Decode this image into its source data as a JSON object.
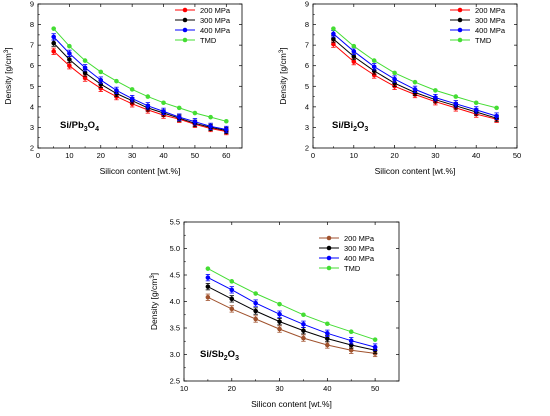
{
  "chart_data": [
    {
      "type": "line",
      "annotation": "Si/Pb3O4",
      "annotation_parts": [
        "Si/Pb",
        "3",
        "O",
        "4"
      ],
      "xlabel": "Silicon content [wt.%]",
      "ylabel": "Density [g/cm3]",
      "ylabel_parts": [
        "Density [g/cm",
        "3",
        "]"
      ],
      "xlim": [
        0,
        65
      ],
      "ylim": [
        2,
        9
      ],
      "xticks": [
        0,
        10,
        20,
        30,
        40,
        50,
        60
      ],
      "yticks": [
        2,
        3,
        4,
        5,
        6,
        7,
        8,
        9
      ],
      "legend_position": "top-right",
      "x": [
        5,
        10,
        15,
        20,
        25,
        30,
        35,
        40,
        45,
        50,
        55,
        60
      ],
      "series": [
        {
          "name": "200 MPa",
          "color": "#ff0000",
          "values": [
            6.7,
            6.0,
            5.4,
            4.9,
            4.5,
            4.15,
            3.85,
            3.6,
            3.4,
            3.15,
            2.95,
            2.8
          ]
        },
        {
          "name": "300 MPa",
          "color": "#000000",
          "values": [
            7.1,
            6.3,
            5.65,
            5.1,
            4.65,
            4.3,
            3.95,
            3.7,
            3.45,
            3.2,
            3.0,
            2.85
          ]
        },
        {
          "name": "400 MPa",
          "color": "#0000ff",
          "values": [
            7.4,
            6.6,
            5.9,
            5.3,
            4.8,
            4.4,
            4.05,
            3.78,
            3.5,
            3.28,
            3.05,
            2.9
          ]
        },
        {
          "name": "TMD",
          "color": "#44dd33",
          "values": [
            7.8,
            6.95,
            6.25,
            5.7,
            5.25,
            4.85,
            4.5,
            4.2,
            3.95,
            3.7,
            3.5,
            3.3
          ]
        }
      ]
    },
    {
      "type": "line",
      "annotation": "Si/Bi2O3",
      "annotation_parts": [
        "Si/Bi",
        "2",
        "O",
        "3"
      ],
      "xlabel": "Silicon content [wt.%]",
      "ylabel": "Density [g/cm3]",
      "ylabel_parts": [
        "Density [g/cm",
        "3",
        "]"
      ],
      "xlim": [
        0,
        50
      ],
      "ylim": [
        2,
        9
      ],
      "xticks": [
        0,
        10,
        20,
        30,
        40,
        50
      ],
      "yticks": [
        2,
        3,
        4,
        5,
        6,
        7,
        8,
        9
      ],
      "legend_position": "top-right",
      "x": [
        5,
        10,
        15,
        20,
        25,
        30,
        35,
        40,
        45
      ],
      "series": [
        {
          "name": "200 MPa",
          "color": "#ff0000",
          "values": [
            7.05,
            6.2,
            5.55,
            5.0,
            4.6,
            4.25,
            3.95,
            3.65,
            3.4
          ]
        },
        {
          "name": "300 MPa",
          "color": "#000000",
          "values": [
            7.3,
            6.45,
            5.75,
            5.15,
            4.7,
            4.35,
            4.05,
            3.75,
            3.45
          ]
        },
        {
          "name": "400 MPa",
          "color": "#0000ff",
          "values": [
            7.55,
            6.7,
            5.95,
            5.35,
            4.85,
            4.45,
            4.15,
            3.85,
            3.55
          ]
        },
        {
          "name": "TMD",
          "color": "#44dd33",
          "values": [
            7.8,
            6.95,
            6.25,
            5.65,
            5.2,
            4.8,
            4.5,
            4.2,
            3.95
          ]
        }
      ]
    },
    {
      "type": "line",
      "annotation": "Si/Sb2O3",
      "annotation_parts": [
        "Si/Sb",
        "2",
        "O",
        "3"
      ],
      "xlabel": "Silicon content [wt.%]",
      "ylabel": "Density [g/cm3]",
      "ylabel_parts": [
        "Density [g/cm",
        "3",
        "]"
      ],
      "xlim": [
        10,
        55
      ],
      "ylim": [
        2.5,
        5.5
      ],
      "xticks": [
        10,
        20,
        30,
        40,
        50
      ],
      "yticks": [
        2.5,
        3.0,
        3.5,
        4.0,
        4.5,
        5.0,
        5.5
      ],
      "legend_position": "top-right",
      "x": [
        15,
        20,
        25,
        30,
        35,
        40,
        45,
        50
      ],
      "series": [
        {
          "name": "200 MPa",
          "color": "#a0522d",
          "values": [
            4.08,
            3.86,
            3.67,
            3.48,
            3.31,
            3.18,
            3.08,
            3.02
          ]
        },
        {
          "name": "300 MPa",
          "color": "#000000",
          "values": [
            4.28,
            4.05,
            3.82,
            3.62,
            3.45,
            3.3,
            3.18,
            3.08
          ]
        },
        {
          "name": "400 MPa",
          "color": "#0000ff",
          "values": [
            4.45,
            4.22,
            3.97,
            3.76,
            3.57,
            3.4,
            3.26,
            3.14
          ]
        },
        {
          "name": "TMD",
          "color": "#44dd33",
          "values": [
            4.62,
            4.38,
            4.15,
            3.95,
            3.75,
            3.58,
            3.43,
            3.28
          ]
        }
      ]
    }
  ]
}
